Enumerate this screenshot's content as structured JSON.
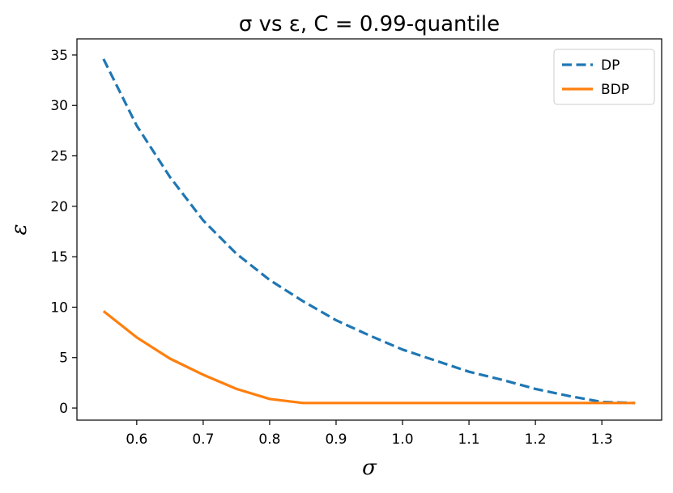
{
  "chart_data": {
    "type": "line",
    "title": "σ vs ε, C = 0.99-quantile",
    "xlabel": "σ",
    "ylabel": "ε",
    "xlim": [
      0.51,
      1.39
    ],
    "ylim": [
      -1.2,
      36.6
    ],
    "xticks": [
      0.6,
      0.7,
      0.8,
      0.9,
      1.0,
      1.1,
      1.2,
      1.3
    ],
    "xtick_labels": [
      "0.6",
      "0.7",
      "0.8",
      "0.9",
      "1.0",
      "1.1",
      "1.2",
      "1.3"
    ],
    "yticks": [
      0,
      5,
      10,
      15,
      20,
      25,
      30,
      35
    ],
    "ytick_labels": [
      "0",
      "5",
      "10",
      "15",
      "20",
      "25",
      "30",
      "35"
    ],
    "grid": false,
    "legend_position": "top-right",
    "x": [
      0.55,
      0.6,
      0.65,
      0.7,
      0.75,
      0.8,
      0.85,
      0.9,
      0.95,
      1.0,
      1.05,
      1.1,
      1.15,
      1.2,
      1.25,
      1.3,
      1.35
    ],
    "series": [
      {
        "name": "DP",
        "color": "#1f77b4",
        "style": "dashed",
        "values": [
          34.6,
          28.0,
          22.9,
          18.6,
          15.3,
          12.7,
          10.6,
          8.7,
          7.2,
          5.8,
          4.7,
          3.6,
          2.8,
          1.9,
          1.2,
          0.6,
          0.5
        ]
      },
      {
        "name": "BDP",
        "color": "#ff7f0e",
        "style": "solid",
        "values": [
          9.6,
          7.0,
          4.9,
          3.3,
          1.9,
          0.9,
          0.5,
          0.5,
          0.5,
          0.5,
          0.5,
          0.5,
          0.5,
          0.5,
          0.5,
          0.5,
          0.5
        ]
      }
    ]
  }
}
